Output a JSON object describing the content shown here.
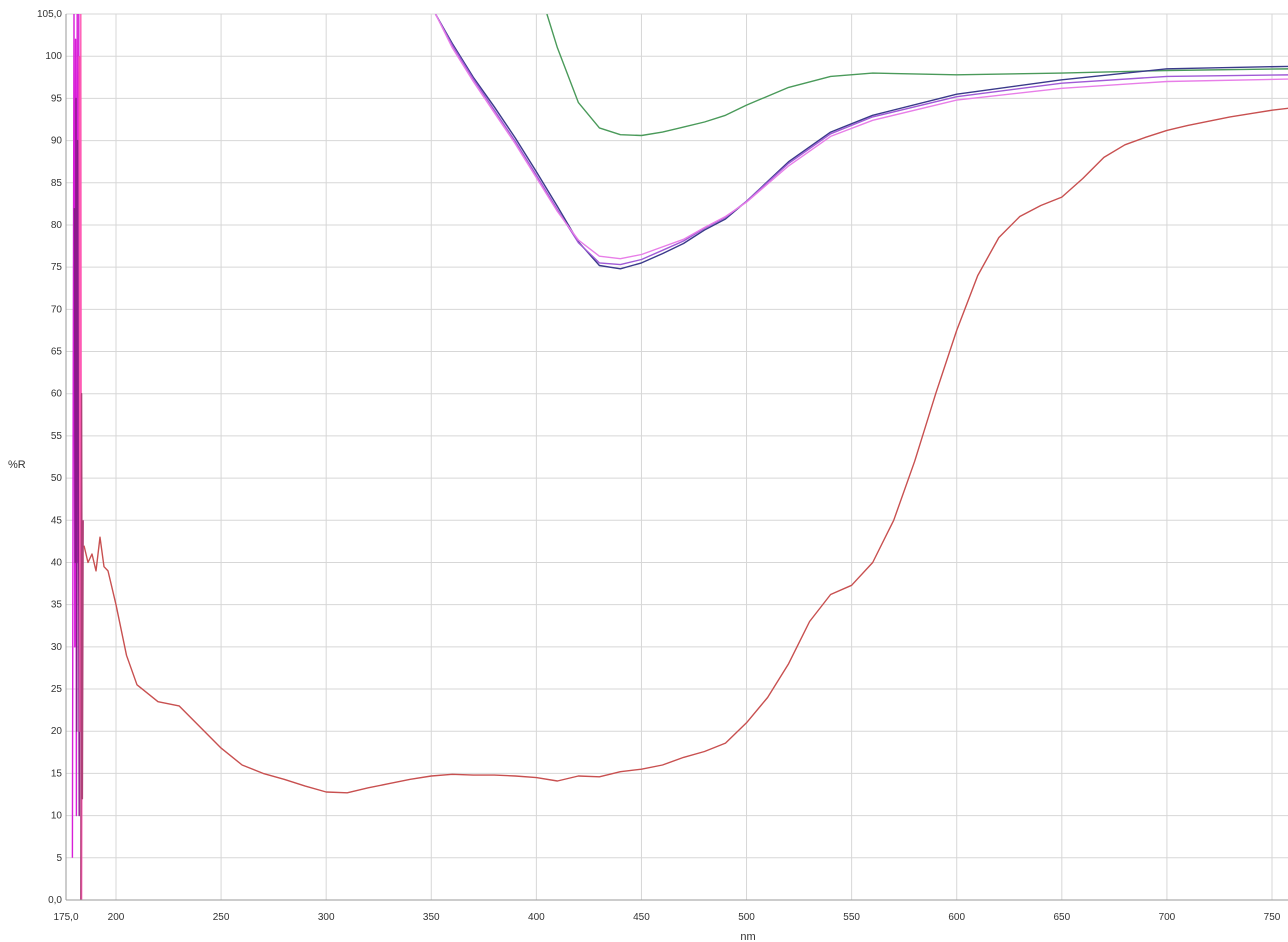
{
  "chart_data": {
    "type": "line",
    "xlabel": "nm",
    "ylabel": "%R",
    "xlim": [
      175.0,
      760
    ],
    "ylim": [
      0.0,
      105.0
    ],
    "x_ticks": [
      "175,0",
      "200",
      "250",
      "300",
      "350",
      "400",
      "450",
      "500",
      "550",
      "600",
      "650",
      "700",
      "750"
    ],
    "y_ticks": [
      "0,0",
      "5",
      "10",
      "15",
      "20",
      "25",
      "30",
      "35",
      "40",
      "45",
      "50",
      "55",
      "60",
      "65",
      "70",
      "75",
      "80",
      "85",
      "90",
      "95",
      "100",
      "105,0"
    ],
    "grid": true,
    "series": [
      {
        "color": "#4a9a5a",
        "x": [
          405,
          410,
          420,
          430,
          440,
          450,
          460,
          470,
          480,
          490,
          500,
          520,
          540,
          560,
          600,
          650,
          700,
          760
        ],
        "y": [
          105,
          101,
          94.5,
          91.5,
          90.7,
          90.6,
          91,
          91.6,
          92.2,
          93,
          94.2,
          96.3,
          97.6,
          98,
          97.8,
          98,
          98.3,
          98.5
        ]
      },
      {
        "color": "#3a3a8a",
        "x": [
          352,
          360,
          370,
          380,
          390,
          400,
          410,
          420,
          430,
          440,
          450,
          460,
          470,
          480,
          490,
          500,
          520,
          540,
          560,
          600,
          650,
          700,
          760
        ],
        "y": [
          105,
          101.5,
          97.5,
          94,
          90.3,
          86.3,
          82.2,
          78,
          75.2,
          74.8,
          75.5,
          76.6,
          77.8,
          79.4,
          80.7,
          82.8,
          87.5,
          91,
          93,
          95.5,
          97.2,
          98.5,
          98.8
        ]
      },
      {
        "color": "#a05ad6",
        "x": [
          352,
          360,
          370,
          380,
          390,
          400,
          410,
          420,
          430,
          440,
          450,
          460,
          470,
          480,
          490,
          500,
          520,
          540,
          560,
          600,
          650,
          700,
          760
        ],
        "y": [
          105,
          101.3,
          97.3,
          93.6,
          89.9,
          85.9,
          81.8,
          77.9,
          75.5,
          75.3,
          75.9,
          77,
          78.1,
          79.6,
          80.9,
          82.8,
          87.3,
          90.8,
          92.8,
          95.2,
          96.8,
          97.6,
          97.8
        ]
      },
      {
        "color": "#e87ee8",
        "x": [
          352,
          360,
          370,
          380,
          390,
          400,
          410,
          420,
          430,
          440,
          450,
          460,
          470,
          480,
          490,
          500,
          520,
          540,
          560,
          600,
          650,
          700,
          760
        ],
        "y": [
          105,
          101,
          97,
          93.3,
          89.6,
          85.6,
          81.6,
          78.2,
          76.3,
          76,
          76.5,
          77.4,
          78.3,
          79.7,
          81,
          82.7,
          87,
          90.5,
          92.4,
          94.8,
          96.2,
          97,
          97.3
        ]
      },
      {
        "color": "#c85050",
        "x": [
          184,
          186,
          188,
          190,
          192,
          194,
          196,
          200,
          205,
          210,
          220,
          230,
          240,
          250,
          260,
          270,
          280,
          290,
          300,
          310,
          320,
          330,
          340,
          350,
          360,
          370,
          380,
          390,
          400,
          410,
          420,
          430,
          440,
          450,
          460,
          470,
          480,
          490,
          500,
          510,
          520,
          530,
          540,
          550,
          560,
          570,
          580,
          590,
          600,
          610,
          620,
          630,
          640,
          650,
          660,
          670,
          680,
          690,
          700,
          710,
          720,
          730,
          740,
          750,
          760
        ],
        "y": [
          42,
          40,
          41,
          39,
          43,
          39.5,
          39,
          35,
          29,
          25.5,
          23.5,
          23,
          20.5,
          18,
          16,
          15,
          14.3,
          13.5,
          12.8,
          12.7,
          13.3,
          13.8,
          14.3,
          14.7,
          14.9,
          14.8,
          14.8,
          14.7,
          14.5,
          14.1,
          14.7,
          14.6,
          15.2,
          15.5,
          16,
          16.9,
          17.6,
          18.6,
          21,
          24,
          28,
          33,
          36.2,
          37.3,
          40,
          45,
          52,
          60,
          67.5,
          74,
          78.5,
          81,
          82.3,
          83.3,
          85.5,
          88,
          89.5,
          90.4,
          91.2,
          91.8,
          92.3,
          92.8,
          93.2,
          93.6,
          93.9
        ]
      },
      {
        "color": "#d81ed8",
        "x": [
          178.2,
          178.6,
          179,
          179.4,
          179.8,
          180.2,
          180.6,
          181,
          181.4,
          181.8,
          182.2,
          182.6
        ],
        "y": [
          5,
          60,
          105,
          30,
          102,
          10,
          105,
          40,
          105,
          20,
          98,
          0
        ]
      },
      {
        "color": "#8a1a8a",
        "x": [
          179.2,
          179.6,
          180,
          180.4,
          180.8,
          181.2,
          181.6,
          182
        ],
        "y": [
          82,
          40,
          95,
          20,
          90,
          60,
          10,
          100
        ]
      },
      {
        "color": "#ff5ab4",
        "x": [
          181.6,
          182,
          182.4,
          182.8,
          183.2
        ],
        "y": [
          100,
          20,
          105,
          0,
          44
        ]
      },
      {
        "color": "#b04078",
        "x": [
          182.4,
          182.8,
          183.2,
          183.6
        ],
        "y": [
          0,
          60,
          12,
          45
        ]
      }
    ]
  }
}
